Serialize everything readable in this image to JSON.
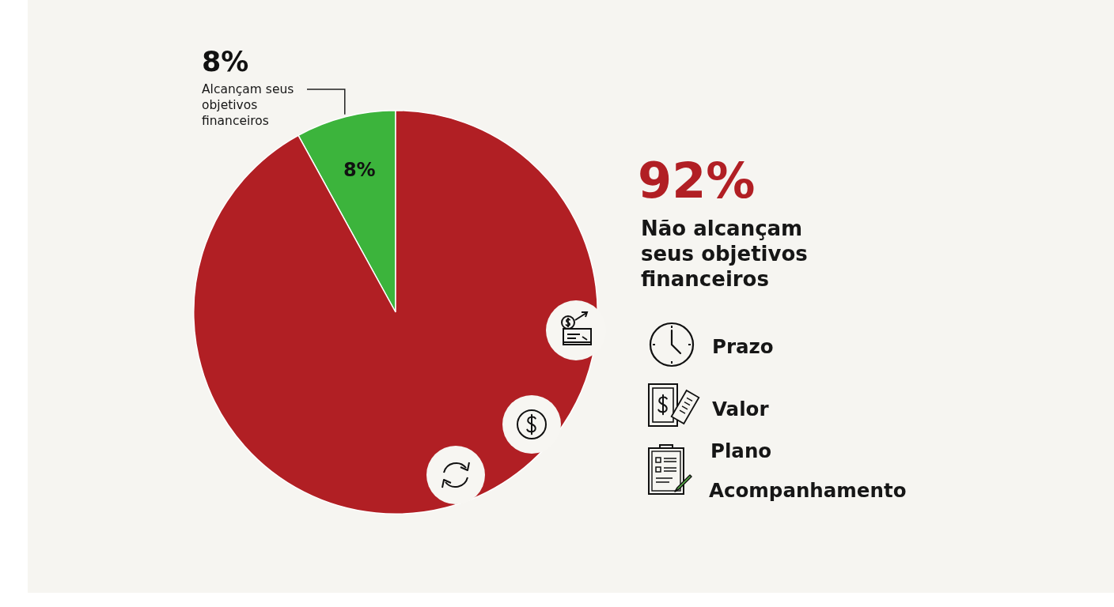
{
  "chart_data": {
    "type": "pie",
    "categories": [
      "Alcançam seus objetivos financeiros",
      "Não alcançam seus objetivos financeiros"
    ],
    "values": [
      8,
      92
    ],
    "colors": [
      "#3cb43c",
      "#b11f24"
    ],
    "value_labels": [
      "8%",
      "92%"
    ],
    "annotations": [
      "8%",
      "Prazo",
      "Valor",
      "Plano",
      "Acompanhamento"
    ]
  }
}
